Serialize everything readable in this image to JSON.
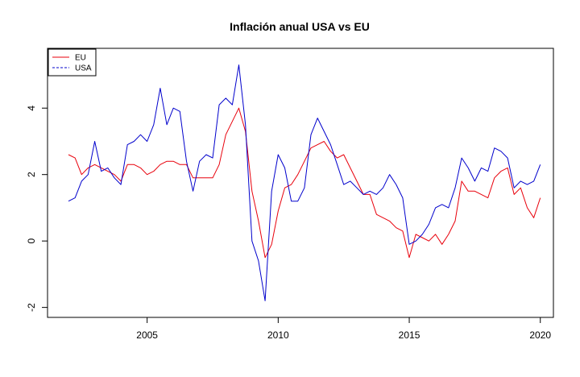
{
  "chart_data": {
    "type": "line",
    "title": "Inflación anual USA vs EU",
    "xlabel": "",
    "ylabel": "",
    "xlim": [
      2001.2,
      2020.5
    ],
    "ylim": [
      -2.3,
      5.8
    ],
    "x_ticks": [
      2005,
      2010,
      2015,
      2020
    ],
    "x_tick_labels": [
      "2005",
      "2010",
      "2015",
      "2020"
    ],
    "y_ticks": [
      -2,
      0,
      2,
      4
    ],
    "y_tick_labels": [
      "-2",
      "0",
      "2",
      "4"
    ],
    "grid": false,
    "legend": {
      "position": "top-left",
      "entries": [
        {
          "label": "EU",
          "color": "#e8000b",
          "dash": "solid"
        },
        {
          "label": "USA",
          "color": "#0000cc",
          "dash": "dashed"
        }
      ]
    },
    "series": [
      {
        "name": "EU",
        "color": "#e8000b",
        "x": [
          2002.0,
          2002.25,
          2002.5,
          2002.75,
          2003.0,
          2003.25,
          2003.5,
          2003.75,
          2004.0,
          2004.25,
          2004.5,
          2004.75,
          2005.0,
          2005.25,
          2005.5,
          2005.75,
          2006.0,
          2006.25,
          2006.5,
          2006.75,
          2007.0,
          2007.25,
          2007.5,
          2007.75,
          2008.0,
          2008.25,
          2008.5,
          2008.75,
          2009.0,
          2009.25,
          2009.5,
          2009.75,
          2010.0,
          2010.25,
          2010.5,
          2010.75,
          2011.0,
          2011.25,
          2011.5,
          2011.75,
          2012.0,
          2012.25,
          2012.5,
          2012.75,
          2013.0,
          2013.25,
          2013.5,
          2013.75,
          2014.0,
          2014.25,
          2014.5,
          2014.75,
          2015.0,
          2015.25,
          2015.5,
          2015.75,
          2016.0,
          2016.25,
          2016.5,
          2016.75,
          2017.0,
          2017.25,
          2017.5,
          2017.75,
          2018.0,
          2018.25,
          2018.5,
          2018.75,
          2019.0,
          2019.25,
          2019.5,
          2019.75,
          2020.0
        ],
        "y": [
          2.6,
          2.5,
          2.0,
          2.2,
          2.3,
          2.2,
          2.1,
          2.0,
          1.8,
          2.3,
          2.3,
          2.2,
          2.0,
          2.1,
          2.3,
          2.4,
          2.4,
          2.3,
          2.3,
          1.9,
          1.9,
          1.9,
          1.9,
          2.3,
          3.2,
          3.6,
          4.0,
          3.3,
          1.5,
          0.6,
          -0.5,
          -0.1,
          0.9,
          1.6,
          1.7,
          2.0,
          2.4,
          2.8,
          2.9,
          3.0,
          2.7,
          2.5,
          2.6,
          2.2,
          1.8,
          1.4,
          1.4,
          0.8,
          0.7,
          0.6,
          0.4,
          0.3,
          -0.5,
          0.2,
          0.1,
          0.0,
          0.2,
          -0.1,
          0.2,
          0.6,
          1.8,
          1.5,
          1.5,
          1.4,
          1.3,
          1.9,
          2.1,
          2.2,
          1.4,
          1.6,
          1.0,
          0.7,
          1.3
        ]
      },
      {
        "name": "USA",
        "color": "#0000cc",
        "x": [
          2002.0,
          2002.25,
          2002.5,
          2002.75,
          2003.0,
          2003.25,
          2003.5,
          2003.75,
          2004.0,
          2004.25,
          2004.5,
          2004.75,
          2005.0,
          2005.25,
          2005.5,
          2005.75,
          2006.0,
          2006.25,
          2006.5,
          2006.75,
          2007.0,
          2007.25,
          2007.5,
          2007.75,
          2008.0,
          2008.25,
          2008.5,
          2008.75,
          2009.0,
          2009.25,
          2009.5,
          2009.75,
          2010.0,
          2010.25,
          2010.5,
          2010.75,
          2011.0,
          2011.25,
          2011.5,
          2011.75,
          2012.0,
          2012.25,
          2012.5,
          2012.75,
          2013.0,
          2013.25,
          2013.5,
          2013.75,
          2014.0,
          2014.25,
          2014.5,
          2014.75,
          2015.0,
          2015.25,
          2015.5,
          2015.75,
          2016.0,
          2016.25,
          2016.5,
          2016.75,
          2017.0,
          2017.25,
          2017.5,
          2017.75,
          2018.0,
          2018.25,
          2018.5,
          2018.75,
          2019.0,
          2019.25,
          2019.5,
          2019.75,
          2020.0
        ],
        "y": [
          1.2,
          1.3,
          1.8,
          2.0,
          3.0,
          2.1,
          2.2,
          1.9,
          1.7,
          2.9,
          3.0,
          3.2,
          3.0,
          3.5,
          4.6,
          3.5,
          4.0,
          3.9,
          2.4,
          1.5,
          2.4,
          2.6,
          2.5,
          4.1,
          4.3,
          4.1,
          5.3,
          3.5,
          0.0,
          -0.6,
          -1.8,
          1.5,
          2.6,
          2.2,
          1.2,
          1.2,
          1.6,
          3.2,
          3.7,
          3.3,
          2.9,
          2.3,
          1.7,
          1.8,
          1.6,
          1.4,
          1.5,
          1.4,
          1.6,
          2.0,
          1.7,
          1.3,
          -0.1,
          0.0,
          0.2,
          0.5,
          1.0,
          1.1,
          1.0,
          1.6,
          2.5,
          2.2,
          1.8,
          2.2,
          2.1,
          2.8,
          2.7,
          2.5,
          1.6,
          1.8,
          1.7,
          1.8,
          2.3
        ]
      }
    ]
  }
}
